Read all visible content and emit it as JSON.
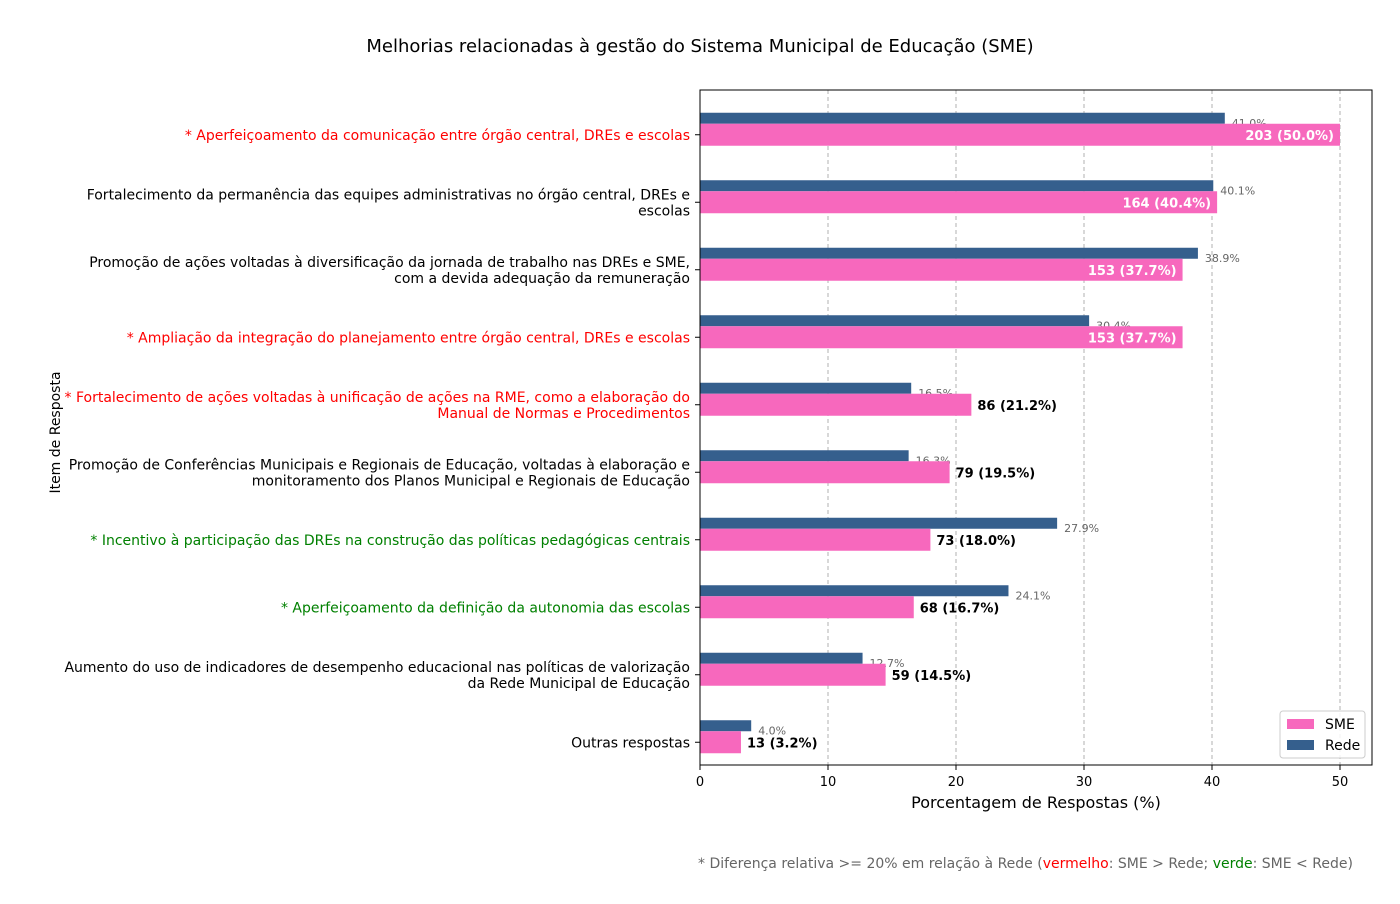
{
  "chart_data": {
    "type": "bar",
    "orientation": "horizontal",
    "title": "Melhorias relacionadas à gestão do Sistema Municipal de Educação (SME)",
    "xlabel": "Porcentagem de Respostas (%)",
    "ylabel": "Item de Resposta",
    "xlim": [
      0,
      52.5
    ],
    "xticks": [
      "0",
      "10",
      "20",
      "30",
      "40",
      "50"
    ],
    "grid": "vertical dashed",
    "legend_position": "bottom-right",
    "categories": [
      {
        "lines": [
          "* Aperfeiçoamento da comunicação entre órgão central, DREs e escolas"
        ],
        "color": "#ff0000"
      },
      {
        "lines": [
          "Fortalecimento da permanência das equipes administrativas no órgão central, DREs e",
          "escolas"
        ],
        "color": "#000000"
      },
      {
        "lines": [
          "Promoção de ações voltadas à diversificação da jornada de trabalho nas DREs e SME,",
          "com a devida adequação da remuneração"
        ],
        "color": "#000000"
      },
      {
        "lines": [
          "* Ampliação da integração do planejamento entre órgão central, DREs e escolas"
        ],
        "color": "#ff0000"
      },
      {
        "lines": [
          "* Fortalecimento de ações voltadas à unificação de ações na RME, como a elaboração do",
          "Manual de Normas e Procedimentos"
        ],
        "color": "#ff0000"
      },
      {
        "lines": [
          "Promoção de Conferências Municipais e Regionais de Educação, voltadas à elaboração e",
          "monitoramento dos Planos Municipal e Regionais de Educação"
        ],
        "color": "#000000"
      },
      {
        "lines": [
          "* Incentivo à participação das DREs na construção das políticas pedagógicas centrais"
        ],
        "color": "#008000"
      },
      {
        "lines": [
          "* Aperfeiçoamento da definição da autonomia das escolas"
        ],
        "color": "#008000"
      },
      {
        "lines": [
          "Aumento do uso de indicadores de desempenho educacional nas políticas de valorização",
          "da Rede Municipal de Educação"
        ],
        "color": "#000000"
      },
      {
        "lines": [
          "Outras respostas"
        ],
        "color": "#000000"
      }
    ],
    "series": [
      {
        "name": "SME",
        "color": "#f768bd",
        "values": [
          50.0,
          40.4,
          37.7,
          37.7,
          21.2,
          19.5,
          18.0,
          16.7,
          14.5,
          3.2
        ],
        "labels": [
          "203 (50.0%)",
          "164 (40.4%)",
          "153 (37.7%)",
          "153 (37.7%)",
          "86 (21.2%)",
          "79 (19.5%)",
          "73 (18.0%)",
          "68 (16.7%)",
          "59 (14.5%)",
          "13 (3.2%)"
        ]
      },
      {
        "name": "Rede",
        "color": "#355f8d",
        "values": [
          41.0,
          40.1,
          38.9,
          30.4,
          16.5,
          16.3,
          27.9,
          24.1,
          12.7,
          4.0
        ],
        "labels": [
          "41.0%",
          "40.1%",
          "38.9%",
          "30.4%",
          "16.5%",
          "16.3%",
          "27.9%",
          "24.1%",
          "12.7%",
          "4.0%"
        ]
      }
    ]
  },
  "footnote": {
    "prefix": "* Diferença relativa >= 20% em relação à Rede (",
    "red_word": "vermelho",
    "mid": ": SME > Rede; ",
    "green_word": "verde",
    "suffix": ": SME < Rede)",
    "red_color": "#ff0000",
    "green_color": "#008000"
  }
}
